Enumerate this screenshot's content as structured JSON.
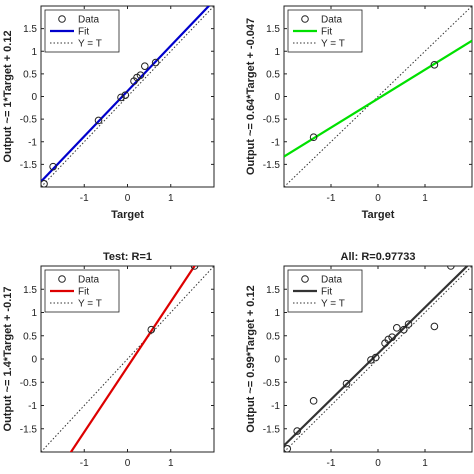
{
  "chart_data": [
    {
      "type": "scatter",
      "title": "",
      "xlabel": "Target",
      "ylabel": "Output ~= 1*Target + 0.12",
      "xlim": [
        -2,
        2
      ],
      "ylim": [
        -2,
        2
      ],
      "xticks": [
        "-1",
        "0",
        "1"
      ],
      "yticks": [
        "-1.5",
        "-1",
        "-0.5",
        "0",
        "0.5",
        "1",
        "1.5"
      ],
      "legend": {
        "position": "top-left",
        "entries": [
          "Data",
          "Fit",
          "Y = T"
        ]
      },
      "fit_color": "#0000cc",
      "fit": {
        "slope": 1,
        "intercept": 0.12
      },
      "points": [
        {
          "x": -1.93,
          "y": -1.93
        },
        {
          "x": -1.72,
          "y": -1.55
        },
        {
          "x": -0.67,
          "y": -0.53
        },
        {
          "x": -0.15,
          "y": -0.02
        },
        {
          "x": -0.05,
          "y": 0.03
        },
        {
          "x": 0.15,
          "y": 0.34
        },
        {
          "x": 0.22,
          "y": 0.42
        },
        {
          "x": 0.3,
          "y": 0.47
        },
        {
          "x": 0.4,
          "y": 0.67
        },
        {
          "x": 0.65,
          "y": 0.75
        }
      ]
    },
    {
      "type": "scatter",
      "title": "",
      "xlabel": "Target",
      "ylabel": "Output ~= 0.64*Target + -0.047",
      "xlim": [
        -2,
        2
      ],
      "ylim": [
        -2,
        2
      ],
      "xticks": [
        "-1",
        "0",
        "1"
      ],
      "yticks": [
        "-1.5",
        "-1",
        "-0.5",
        "0",
        "0.5",
        "1",
        "1.5"
      ],
      "legend": {
        "position": "top-left",
        "entries": [
          "Data",
          "Fit",
          "Y = T"
        ]
      },
      "fit_color": "#00e000",
      "fit": {
        "slope": 0.64,
        "intercept": -0.047
      },
      "points": [
        {
          "x": -1.37,
          "y": -0.9
        },
        {
          "x": 1.2,
          "y": 0.7
        }
      ]
    },
    {
      "type": "scatter",
      "title": "Test: R=1",
      "xlabel": "",
      "ylabel": "Output ~= 1.4*Target + -0.17",
      "xlim": [
        -2,
        2
      ],
      "ylim": [
        -2,
        2
      ],
      "xticks": [
        "-1",
        "0",
        "1"
      ],
      "yticks": [
        "-1.5",
        "-1",
        "-0.5",
        "0",
        "0.5",
        "1",
        "1.5"
      ],
      "legend": {
        "position": "top-left",
        "entries": [
          "Data",
          "Fit",
          "Y = T"
        ]
      },
      "fit_color": "#dd0000",
      "fit": {
        "slope": 1.4,
        "intercept": -0.17
      },
      "points": [
        {
          "x": 0.55,
          "y": 0.63
        },
        {
          "x": 1.55,
          "y": 2.0
        }
      ]
    },
    {
      "type": "scatter",
      "title": "All: R=0.97733",
      "xlabel": "",
      "ylabel": "Output ~= 0.99*Target + 0.12",
      "xlim": [
        -2,
        2
      ],
      "ylim": [
        -2,
        2
      ],
      "xticks": [
        "-1",
        "0",
        "1"
      ],
      "yticks": [
        "-1.5",
        "-1",
        "-0.5",
        "0",
        "0.5",
        "1",
        "1.5"
      ],
      "legend": {
        "position": "top-left",
        "entries": [
          "Data",
          "Fit",
          "Y = T"
        ]
      },
      "fit_color": "#333333",
      "fit": {
        "slope": 0.99,
        "intercept": 0.12
      },
      "points": [
        {
          "x": -1.93,
          "y": -1.93
        },
        {
          "x": -1.72,
          "y": -1.55
        },
        {
          "x": -1.37,
          "y": -0.9
        },
        {
          "x": -0.67,
          "y": -0.53
        },
        {
          "x": -0.15,
          "y": -0.02
        },
        {
          "x": -0.05,
          "y": 0.03
        },
        {
          "x": 0.15,
          "y": 0.34
        },
        {
          "x": 0.22,
          "y": 0.42
        },
        {
          "x": 0.3,
          "y": 0.47
        },
        {
          "x": 0.4,
          "y": 0.67
        },
        {
          "x": 0.55,
          "y": 0.63
        },
        {
          "x": 0.65,
          "y": 0.75
        },
        {
          "x": 1.2,
          "y": 0.7
        },
        {
          "x": 1.55,
          "y": 2.0
        }
      ]
    }
  ]
}
